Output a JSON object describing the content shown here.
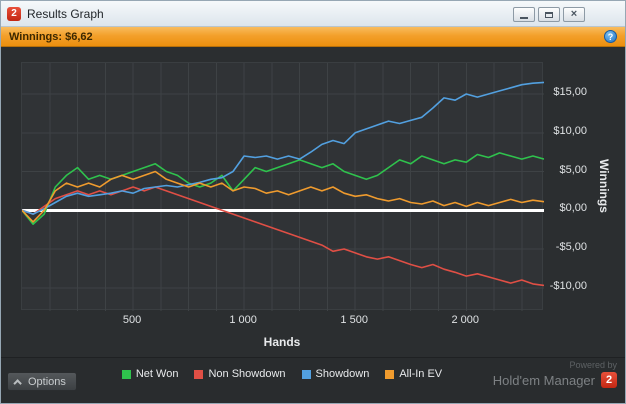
{
  "window": {
    "title": "Results Graph",
    "badge": "2",
    "close_glyph": "×"
  },
  "winnings_bar": {
    "label": "Winnings: $6,62",
    "help_icon": "?"
  },
  "footer": {
    "options_label": "Options",
    "powered_by": "Powered by",
    "brand_name": "Hold'em Manager",
    "brand_badge": "2"
  },
  "chart_data": {
    "type": "line",
    "title": "",
    "xlabel": "Hands",
    "ylabel": "Winnings",
    "xlim": [
      0,
      2350
    ],
    "ylim": [
      -13,
      19
    ],
    "grid": true,
    "grid_x_step": 125,
    "grid_y_step": 5,
    "legend_position": "bottom",
    "colors": {
      "grid": "#3e4245",
      "zero_line": "#ffffff",
      "plot_bg": "#303336",
      "window_bg": "#2b2e30",
      "accent_orange": "#f3a02b"
    },
    "xticks": [
      {
        "value": 500,
        "label": "500"
      },
      {
        "value": 1000,
        "label": "1 000"
      },
      {
        "value": 1500,
        "label": "1 500"
      },
      {
        "value": 2000,
        "label": "2 000"
      }
    ],
    "yticks": [
      {
        "value": 15,
        "label": "$15,00"
      },
      {
        "value": 10,
        "label": "$10,00"
      },
      {
        "value": 5,
        "label": "$5,00"
      },
      {
        "value": 0,
        "label": "$0,00"
      },
      {
        "value": -5,
        "label": "-$5,00"
      },
      {
        "value": -10,
        "label": "-$10,00"
      }
    ],
    "x": [
      0,
      50,
      100,
      150,
      200,
      250,
      300,
      350,
      400,
      450,
      500,
      550,
      600,
      650,
      700,
      750,
      800,
      850,
      900,
      950,
      1000,
      1050,
      1100,
      1150,
      1200,
      1250,
      1300,
      1350,
      1400,
      1450,
      1500,
      1550,
      1600,
      1650,
      1700,
      1750,
      1800,
      1850,
      1900,
      1950,
      2000,
      2050,
      2100,
      2150,
      2200,
      2250,
      2300,
      2350
    ],
    "series": [
      {
        "name": "Net Won",
        "color": "#2fc24d",
        "values": [
          0,
          -1.8,
          -0.5,
          3,
          4.5,
          5.5,
          4,
          4.5,
          4,
          4.5,
          5,
          5.5,
          6,
          5,
          4.5,
          3.5,
          3,
          3.5,
          4.5,
          2.5,
          4,
          5.5,
          5,
          5.5,
          6,
          6.5,
          6,
          5.5,
          6,
          5,
          4.5,
          4,
          4.5,
          5.5,
          6.5,
          6,
          7,
          6.5,
          6,
          6.5,
          6.2,
          7.2,
          6.8,
          7.4,
          7,
          6.6,
          7,
          6.6
        ]
      },
      {
        "name": "Non Showdown",
        "color": "#e04f45",
        "values": [
          0,
          -0.5,
          0.5,
          1.5,
          2,
          2.5,
          2,
          2.5,
          2,
          2.5,
          3,
          2.5,
          3,
          2.5,
          2,
          1.5,
          1,
          0.5,
          0,
          -0.5,
          -1,
          -1.5,
          -2,
          -2.5,
          -3,
          -3.5,
          -4,
          -4.5,
          -5.3,
          -5,
          -5.5,
          -6,
          -6.3,
          -6,
          -6.5,
          -7,
          -7.4,
          -7,
          -7.6,
          -8,
          -8.5,
          -8.2,
          -8.6,
          -9,
          -9.4,
          -9,
          -9.5,
          -9.7
        ]
      },
      {
        "name": "Showdown",
        "color": "#52a0e0",
        "values": [
          0,
          -0.5,
          0.2,
          1,
          1.8,
          2.2,
          1.8,
          2,
          2.2,
          2.5,
          2.2,
          2.8,
          3,
          3.2,
          3,
          3.3,
          3.6,
          4,
          4.2,
          5,
          7,
          6.8,
          7,
          6.6,
          7,
          6.6,
          7.5,
          8.5,
          9,
          8.6,
          10,
          10.5,
          11,
          11.5,
          11.2,
          11.6,
          12,
          13.2,
          14.5,
          14.2,
          15,
          14.6,
          15,
          15.4,
          15.8,
          16.2,
          16.4,
          16.5
        ]
      },
      {
        "name": "All-In EV",
        "color": "#ef9b2e",
        "values": [
          0,
          -1.5,
          0,
          2.5,
          3.5,
          3,
          3.5,
          3,
          4,
          4.5,
          4,
          4.5,
          5,
          4,
          3.5,
          3,
          3.5,
          3,
          3.5,
          2.5,
          3,
          2.8,
          2.2,
          2.5,
          2,
          2.5,
          3,
          2.5,
          3,
          2.2,
          1.8,
          2,
          1.5,
          1.2,
          1.5,
          1,
          0.8,
          1.2,
          0.6,
          1,
          0.5,
          1,
          0.6,
          1,
          1.4,
          1,
          1.3,
          1.1
        ]
      }
    ]
  }
}
